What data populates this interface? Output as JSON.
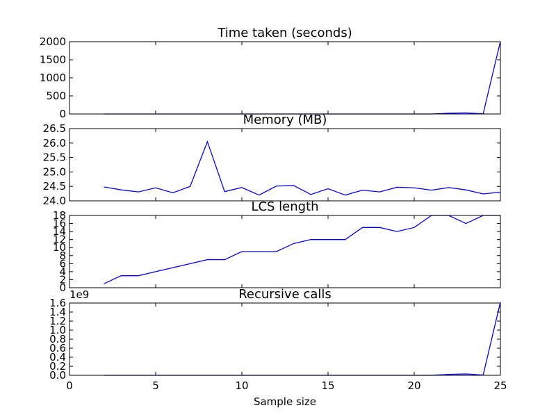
{
  "chart_data": {
    "type": "line",
    "shared_x": {
      "xlabel": "Sample size",
      "xlim": [
        0,
        25
      ],
      "xticks": [
        0,
        5,
        10,
        15,
        20,
        25
      ],
      "x": [
        2,
        3,
        4,
        5,
        6,
        7,
        8,
        9,
        10,
        11,
        12,
        13,
        14,
        15,
        16,
        17,
        18,
        19,
        20,
        21,
        22,
        23,
        24,
        25
      ]
    },
    "line_color": "#0000ff",
    "panels": [
      {
        "title": "Time taken (seconds)",
        "ylim": [
          0,
          2000
        ],
        "yticks": [
          0,
          500,
          1000,
          1500,
          2000
        ],
        "ytick_labels": [
          "0",
          "500",
          "1000",
          "1500",
          "2000"
        ],
        "offset_label": "",
        "values": [
          0,
          0,
          0,
          0,
          0,
          0,
          0,
          0,
          0,
          0,
          0,
          0,
          0,
          0,
          0,
          0,
          0,
          0,
          0,
          0,
          20,
          30,
          5,
          2010
        ]
      },
      {
        "title": "Memory (MB)",
        "ylim": [
          24.0,
          26.5
        ],
        "yticks": [
          24.0,
          24.5,
          25.0,
          25.5,
          26.0,
          26.5
        ],
        "ytick_labels": [
          "24.0",
          "24.5",
          "25.0",
          "25.5",
          "26.0",
          "26.5"
        ],
        "offset_label": "",
        "values": [
          24.48,
          24.38,
          24.31,
          24.45,
          24.28,
          24.5,
          26.05,
          24.32,
          24.46,
          24.2,
          24.51,
          24.53,
          24.22,
          24.42,
          24.2,
          24.37,
          24.31,
          24.47,
          24.45,
          24.37,
          24.46,
          24.38,
          24.24,
          24.3
        ]
      },
      {
        "title": "LCS length",
        "ylim": [
          0,
          18
        ],
        "yticks": [
          0,
          2,
          4,
          6,
          8,
          10,
          12,
          14,
          16,
          18
        ],
        "ytick_labels": [
          "0",
          "2",
          "4",
          "6",
          "8",
          "10",
          "12",
          "14",
          "16",
          "18"
        ],
        "offset_label": "",
        "values": [
          1,
          3,
          3,
          4,
          5,
          6,
          7,
          7,
          9,
          9,
          9,
          11,
          12,
          12,
          12,
          15,
          15,
          14,
          15,
          18,
          18,
          16,
          18,
          18
        ]
      },
      {
        "title": "Recursive calls",
        "ylim": [
          0,
          1.6
        ],
        "yticks": [
          0.0,
          0.2,
          0.4,
          0.6,
          0.8,
          1.0,
          1.2,
          1.4,
          1.6
        ],
        "ytick_labels": [
          "0.0",
          "0.2",
          "0.4",
          "0.6",
          "0.8",
          "1.0",
          "1.2",
          "1.4",
          "1.6"
        ],
        "offset_label": "1e9",
        "values": [
          0,
          0,
          0,
          0,
          0,
          0,
          0,
          0,
          0,
          0,
          0,
          0,
          0,
          0,
          0,
          0,
          0,
          0,
          0,
          0,
          0.02,
          0.03,
          0.005,
          1.62
        ]
      }
    ]
  }
}
